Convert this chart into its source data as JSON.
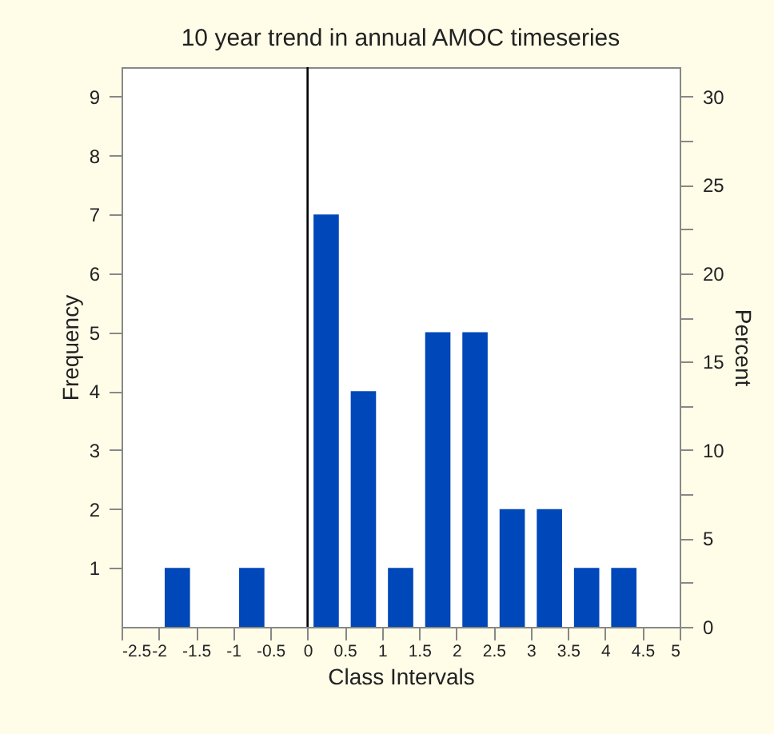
{
  "chart_data": {
    "type": "histogram",
    "title": "10 year trend in annual AMOC timeseries",
    "xlabel": "Class Intervals",
    "ylabel": "Frequency",
    "y2label": "Percent",
    "bins": [
      -2.5,
      -2,
      -1.5,
      -1,
      -0.5,
      0,
      0.5,
      1,
      1.5,
      2,
      2.5,
      3,
      3.5,
      4,
      4.5,
      5
    ],
    "values": [
      0,
      1,
      0,
      1,
      0,
      7,
      4,
      1,
      5,
      5,
      2,
      2,
      1,
      1,
      0
    ],
    "color": "#0047b9",
    "xlim": [
      -2.5,
      5
    ],
    "xticks": [
      -2.5,
      -2,
      -1.5,
      -1,
      -0.5,
      0,
      0.5,
      1,
      1.5,
      2,
      2.5,
      3,
      3.5,
      4,
      4.5,
      5
    ],
    "ylim": [
      0,
      9.5
    ],
    "yticks": [
      1,
      2,
      3,
      4,
      5,
      6,
      7,
      8,
      9
    ],
    "y2lim": [
      0,
      31.67
    ],
    "y2ticks": [
      0,
      {
        "value": 2.5,
        "label": null
      },
      5,
      {
        "value": 7.5,
        "label": null
      },
      10,
      {
        "value": 12.5,
        "label": null
      },
      15,
      {
        "value": 17.5,
        "label": null
      },
      20,
      {
        "value": 22.5,
        "label": null
      },
      25,
      {
        "value": 27.5,
        "label": null
      },
      30
    ],
    "ref_lines": [
      {
        "axis": "x",
        "value": 0,
        "color": "#000000"
      }
    ],
    "grid": false
  }
}
